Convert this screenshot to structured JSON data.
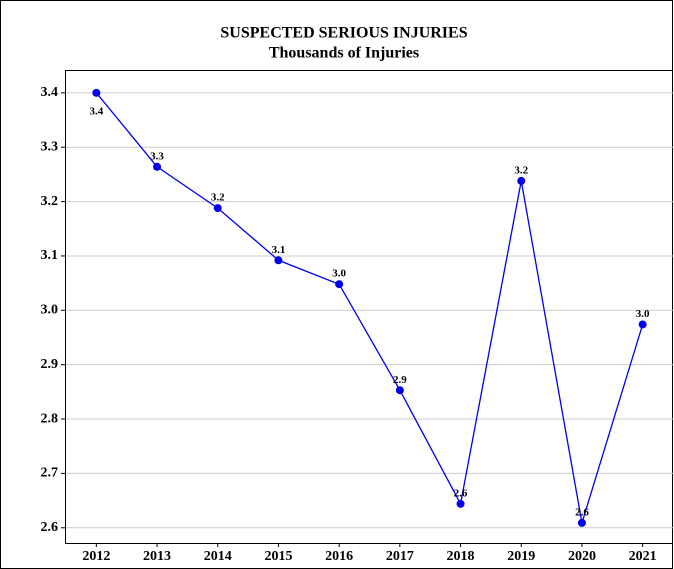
{
  "chart_data": {
    "type": "line",
    "title": "SUSPECTED SERIOUS INJURIES",
    "subtitle": "Thousands of Injuries",
    "categories": [
      "2012",
      "2013",
      "2014",
      "2015",
      "2016",
      "2017",
      "2018",
      "2019",
      "2020",
      "2021"
    ],
    "series": [
      {
        "name": "Suspected Serious Injuries",
        "color": "#0000ee",
        "values": [
          3.4,
          3.264,
          3.188,
          3.092,
          3.048,
          2.853,
          2.644,
          3.238,
          2.609,
          2.974
        ],
        "value_labels": [
          "3.4",
          "3.3",
          "3.2",
          "3.1",
          "3.0",
          "2.9",
          "2.6",
          "3.2",
          "2.6",
          "3.0"
        ]
      }
    ],
    "ylim": [
      2.572,
      3.442
    ],
    "yticks": [
      2.6,
      2.7,
      2.8,
      2.9,
      {
        "value": 3,
        "label": "3.0"
      },
      3.1,
      3.2,
      3.3,
      3.4
    ],
    "grid": true
  }
}
